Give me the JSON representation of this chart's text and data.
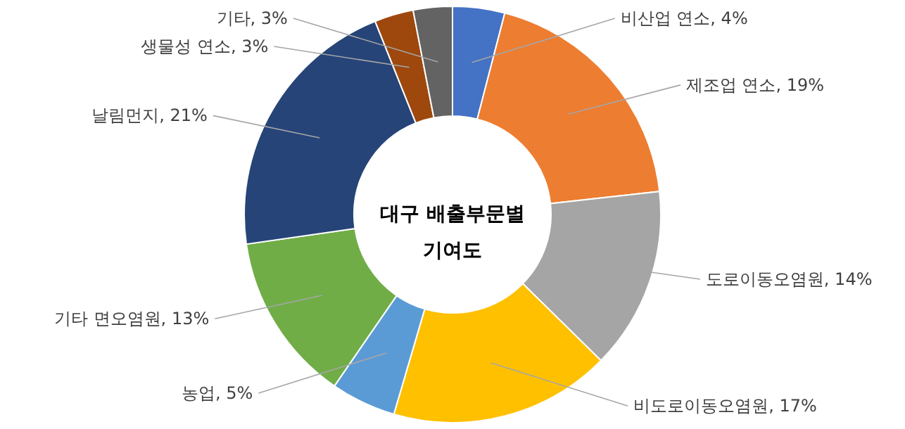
{
  "chart_data": {
    "type": "donut",
    "title": "대구 배출부문별 기여도",
    "categories": [
      "비산업 연소",
      "제조업 연소",
      "도로이동오염원",
      "비도로이동오염원",
      "농업",
      "기타 면오염원",
      "날림먼지",
      "생물성 연소",
      "기타"
    ],
    "values": [
      4,
      19,
      14,
      17,
      5,
      13,
      21,
      3,
      3
    ],
    "value_labels": [
      "4%",
      "19%",
      "14%",
      "17%",
      "5%",
      "13%",
      "21%",
      "3%",
      "3%"
    ],
    "colors": [
      "#4472c4",
      "#ed7d31",
      "#a5a5a5",
      "#ffc000",
      "#5b9bd5",
      "#70ad47",
      "#264478",
      "#9e480e",
      "#636363"
    ]
  }
}
